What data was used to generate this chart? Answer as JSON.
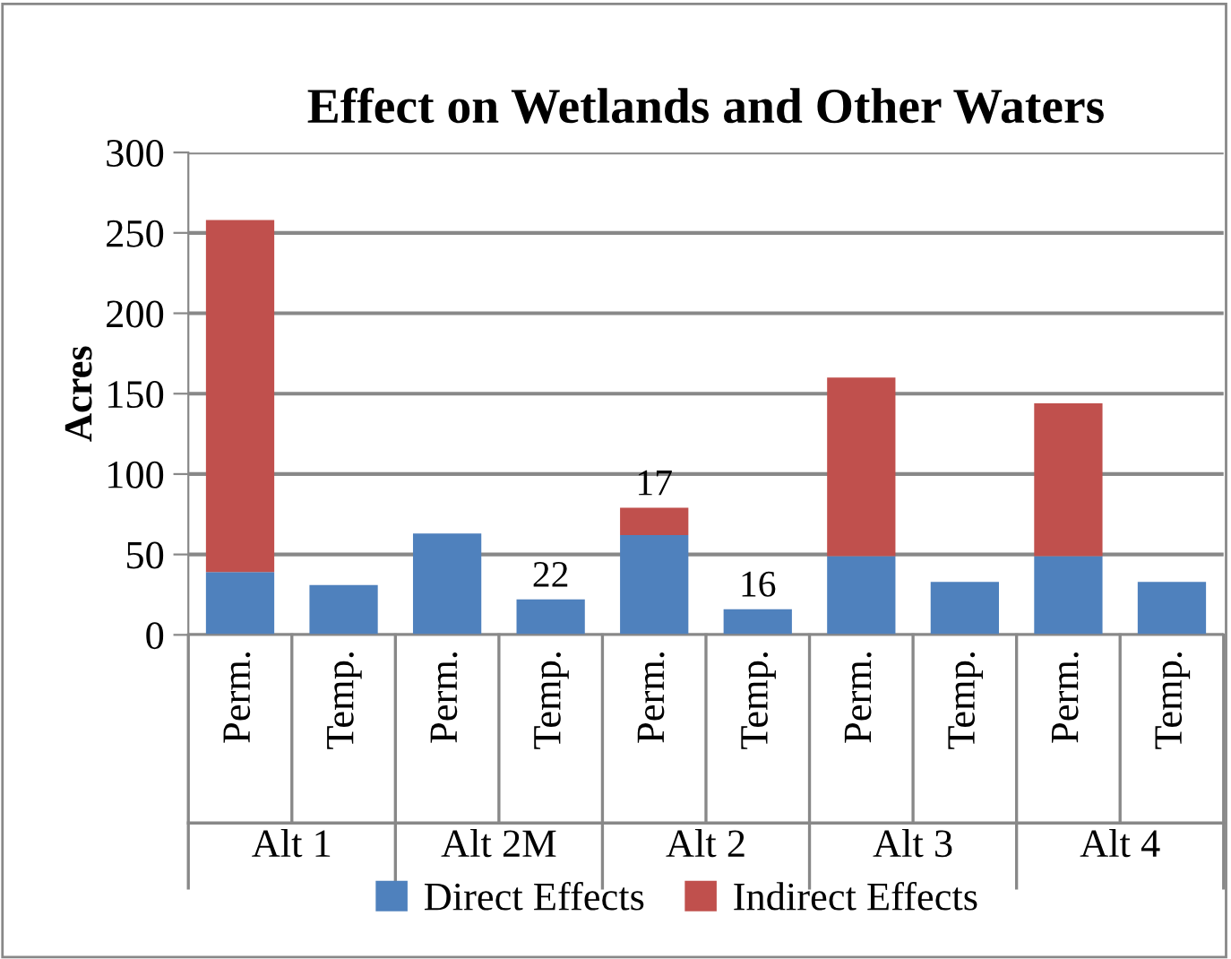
{
  "chart_data": {
    "type": "bar",
    "title": "Effect on Wetlands and Other Waters",
    "ylabel": "Acres",
    "categories": [
      "Perm.",
      "Temp.",
      "Perm.",
      "Temp.",
      "Perm.",
      "Temp.",
      "Perm.",
      "Temp.",
      "Perm.",
      "Temp."
    ],
    "annotations": [
      "Alt 1",
      "Alt 2M",
      "Alt 2",
      "Alt 3",
      "Alt 4"
    ],
    "stacked": true,
    "series": [
      {
        "name": "Direct Effects",
        "color": "#4f81bd",
        "values": [
          39,
          31,
          63,
          22,
          62,
          16,
          49,
          33,
          49,
          33
        ],
        "value_labels": [
          null,
          null,
          null,
          "22",
          null,
          "16",
          null,
          null,
          null,
          null
        ]
      },
      {
        "name": "Indirect Effects",
        "color": "#c0504d",
        "values": [
          219,
          null,
          null,
          null,
          17,
          null,
          111,
          null,
          95,
          null
        ],
        "value_labels": [
          null,
          null,
          null,
          null,
          "17",
          null,
          null,
          null,
          null,
          null
        ]
      }
    ],
    "ylim": [
      0,
      300
    ],
    "yticks": [
      0,
      50,
      100,
      150,
      200,
      250,
      300
    ],
    "grid": "y",
    "legend": "bottom"
  }
}
